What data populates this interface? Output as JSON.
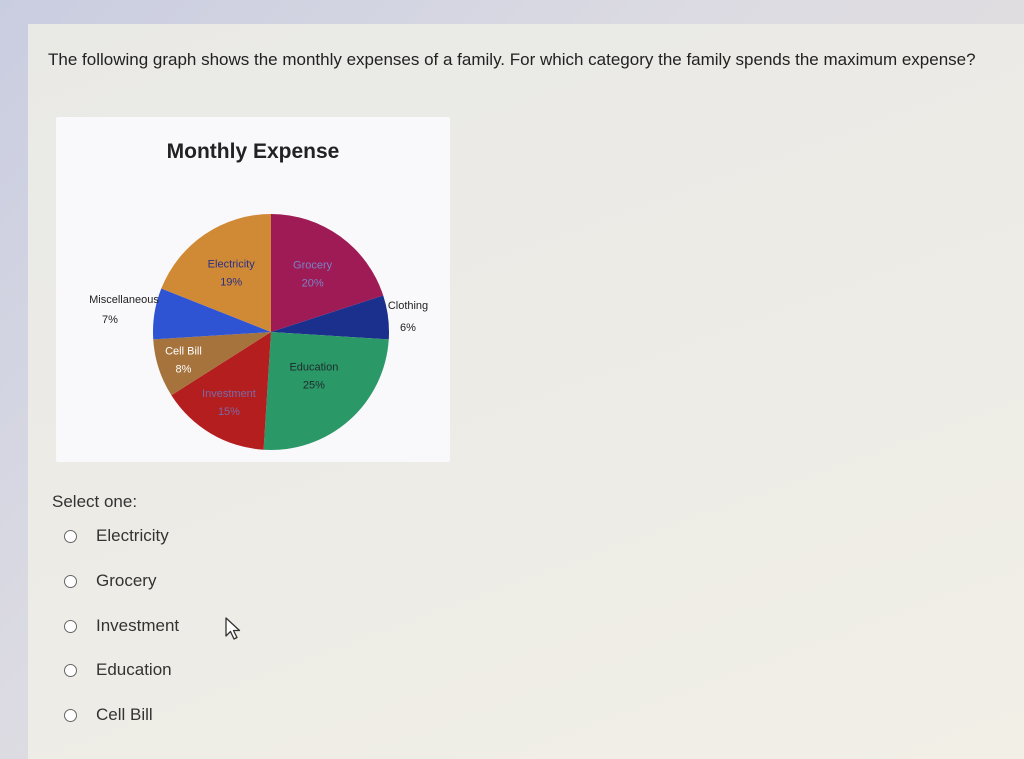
{
  "question": "The following graph shows the monthly expenses of a family. For which category the family spends the maximum expense?",
  "select_label": "Select one:",
  "options": [
    {
      "label": "Electricity"
    },
    {
      "label": "Grocery"
    },
    {
      "label": "Investment"
    },
    {
      "label": "Education"
    },
    {
      "label": "Cell Bill"
    }
  ],
  "chart_data": {
    "type": "pie",
    "title": "Monthly Expense",
    "slices": [
      {
        "name": "Grocery",
        "value": 20,
        "label": "20%",
        "color": "#9e1b55"
      },
      {
        "name": "Clothing",
        "value": 6,
        "label": "6%",
        "color": "#1b2f8c"
      },
      {
        "name": "Education",
        "value": 25,
        "label": "25%",
        "color": "#2b9868"
      },
      {
        "name": "Investment",
        "value": 15,
        "label": "15%",
        "color": "#b51e1e"
      },
      {
        "name": "Cell Bill",
        "value": 8,
        "label": "8%",
        "color": "#a6733c"
      },
      {
        "name": "Miscellaneous",
        "value": 7,
        "label": "7%",
        "color": "#2e54d4"
      },
      {
        "name": "Electricity",
        "value": 19,
        "label": "19%",
        "color": "#d08a35"
      }
    ]
  }
}
